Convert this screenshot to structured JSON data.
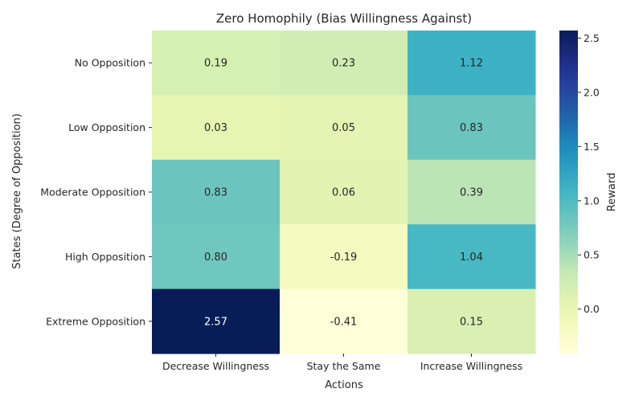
{
  "chart_data": {
    "type": "heatmap",
    "title": "Zero Homophily (Bias Willingness Against)",
    "xlabel": "Actions",
    "ylabel": "States (Degree of Opposition)",
    "columns": [
      "Decrease Willingness",
      "Stay the Same",
      "Increase Willingness"
    ],
    "rows": [
      "No Opposition",
      "Low Opposition",
      "Moderate Opposition",
      "High Opposition",
      "Extreme Opposition"
    ],
    "values": [
      [
        0.19,
        0.23,
        1.12
      ],
      [
        0.03,
        0.05,
        0.83
      ],
      [
        0.83,
        0.06,
        0.39
      ],
      [
        0.8,
        -0.19,
        1.04
      ],
      [
        2.57,
        -0.41,
        0.15
      ]
    ],
    "value_labels": [
      [
        "0.19",
        "0.23",
        "1.12"
      ],
      [
        "0.03",
        "0.05",
        "0.83"
      ],
      [
        "0.83",
        "0.06",
        "0.39"
      ],
      [
        "0.80",
        "-0.19",
        "1.04"
      ],
      [
        "2.57",
        "-0.41",
        "0.15"
      ]
    ],
    "colorbar": {
      "label": "Reward",
      "colormap": "YlGnBu",
      "vmin": -0.41,
      "vmax": 2.57,
      "ticks": [
        0.0,
        0.5,
        1.0,
        1.5,
        2.0,
        2.5
      ],
      "tick_labels": [
        "0.0",
        "0.5",
        "1.0",
        "1.5",
        "2.0",
        "2.5"
      ]
    }
  }
}
